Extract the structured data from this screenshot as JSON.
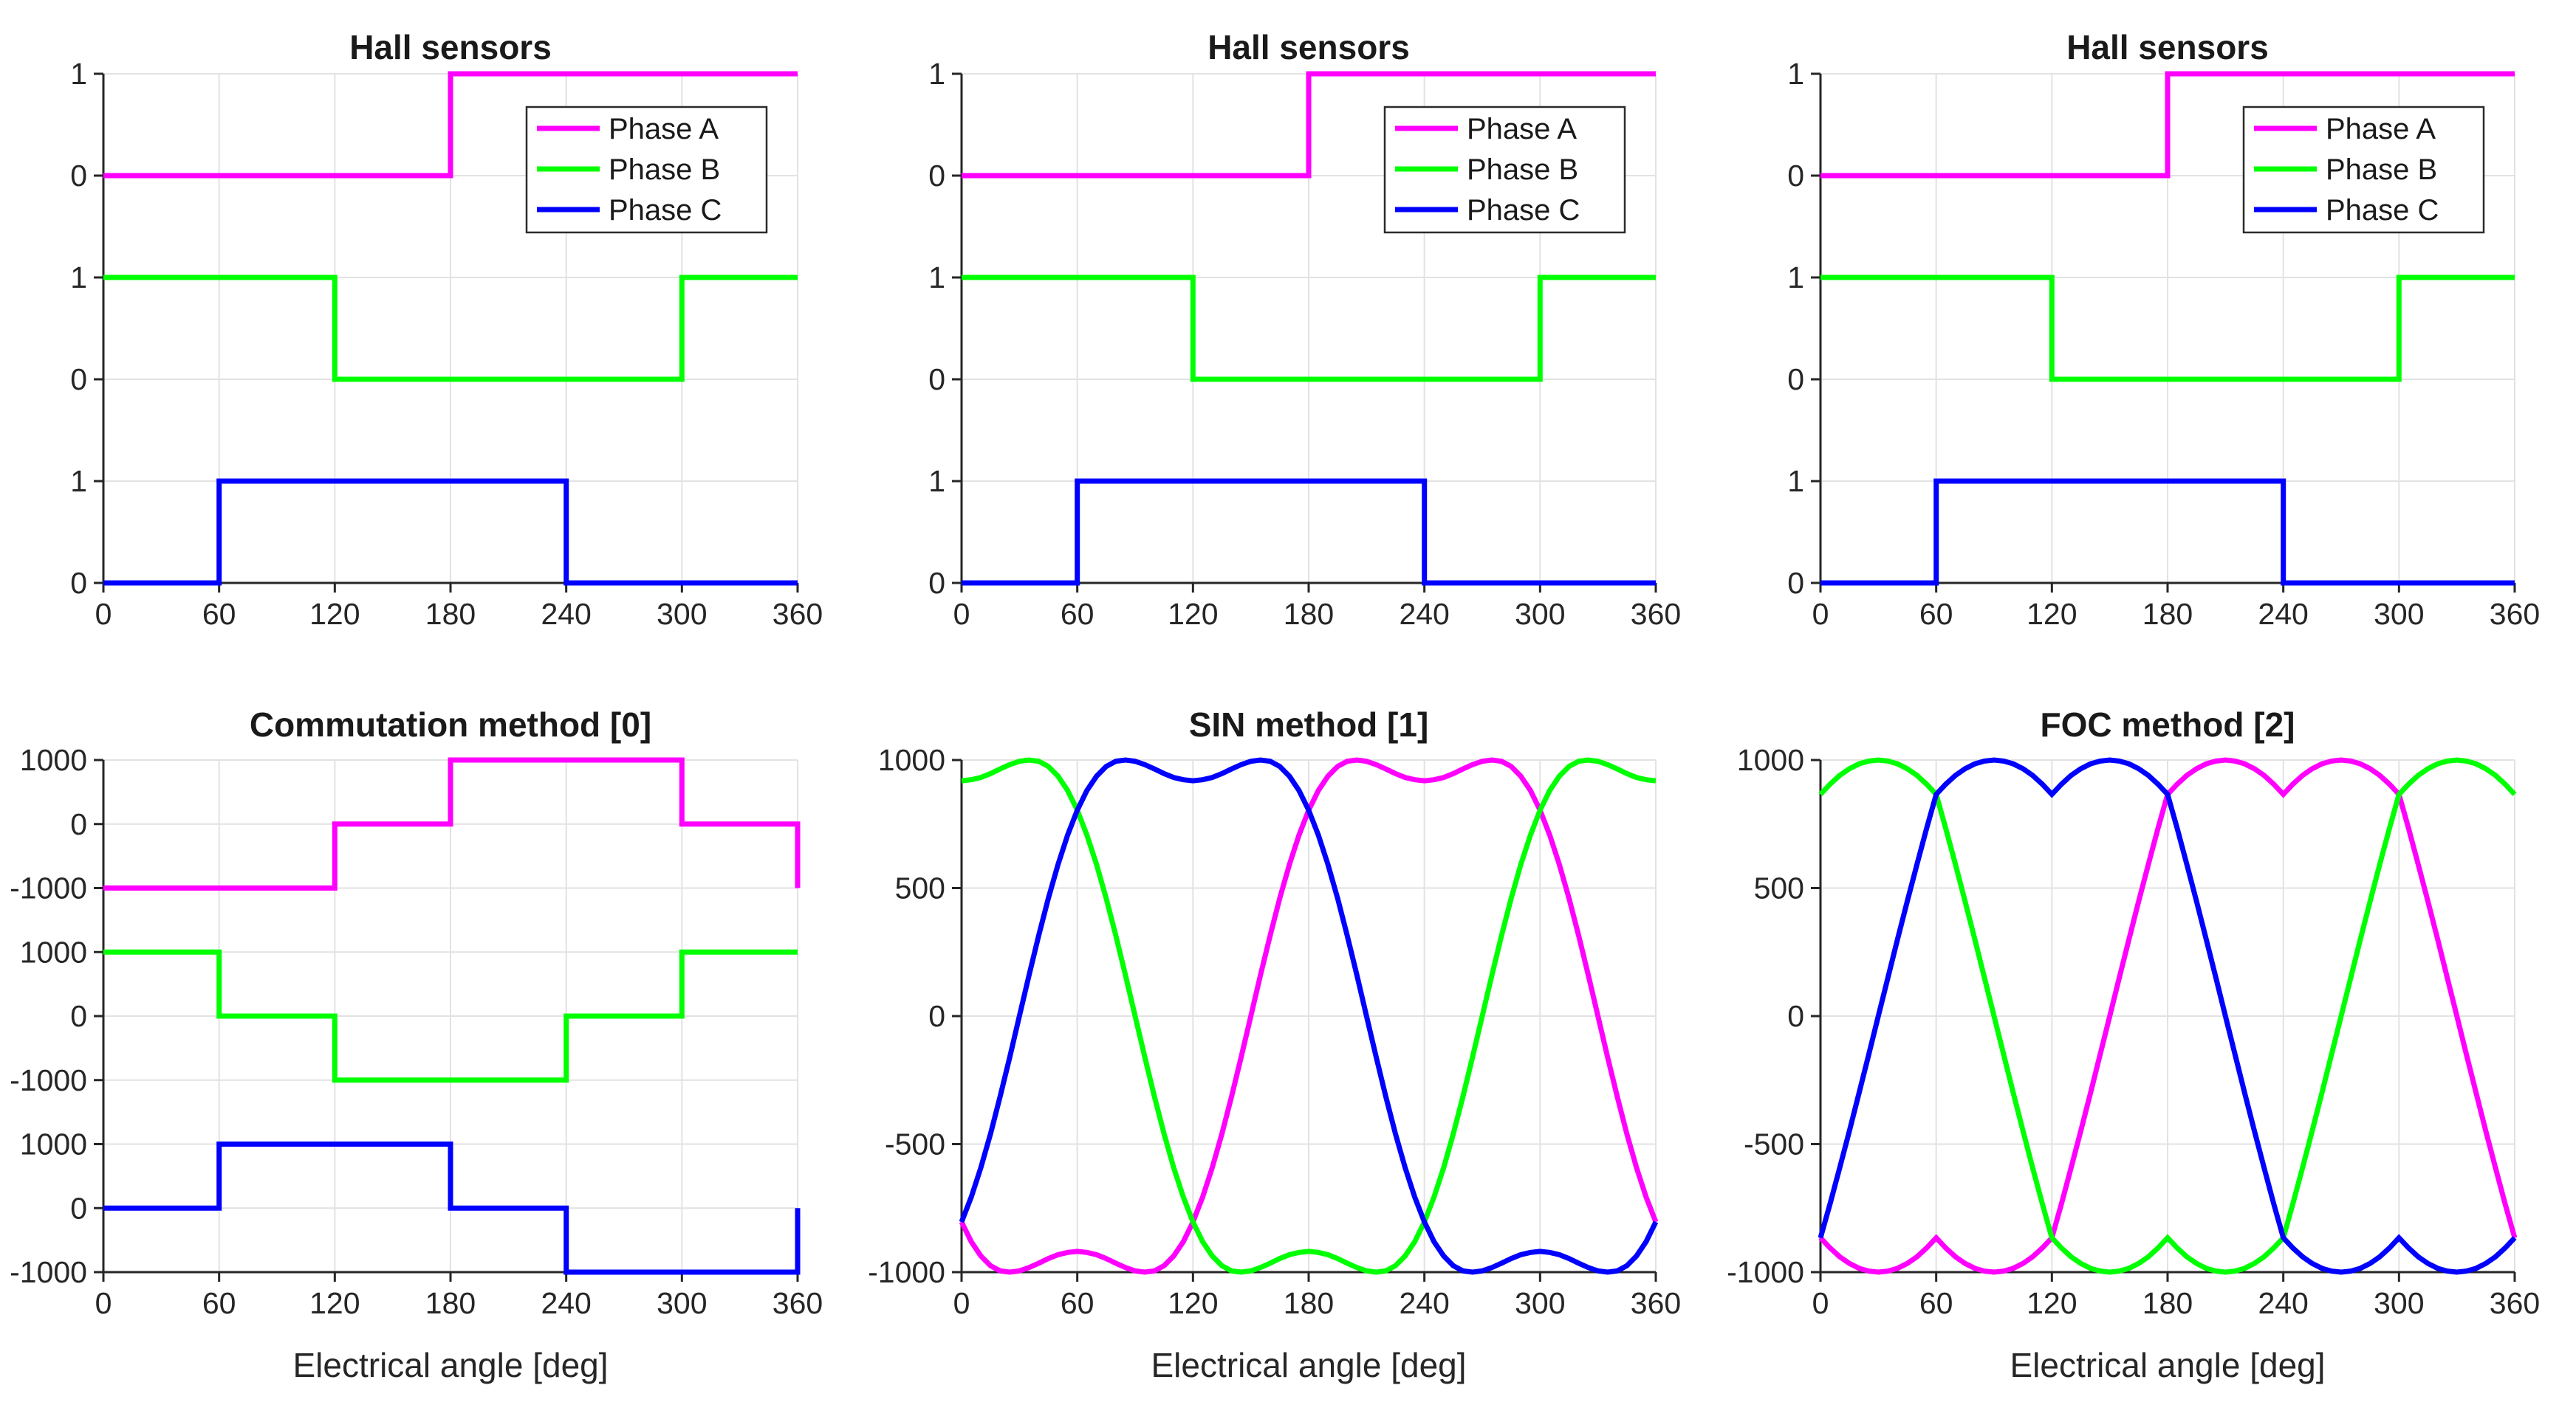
{
  "figure": {
    "background": "#ffffff",
    "axis_color": "#262626",
    "grid_color": "#e2e2e2",
    "text_color": "#262626"
  },
  "phases": {
    "a": {
      "label": "Phase A",
      "color": "#ff00ff"
    },
    "b": {
      "label": "Phase B",
      "color": "#00ff00"
    },
    "c": {
      "label": "Phase C",
      "color": "#0000ff"
    }
  },
  "waveforms": {
    "step_deg": 5,
    "sin_base": [
      0,
      160,
      314,
      460,
      592,
      707,
      804,
      881,
      937,
      975,
      995,
      1000,
      995,
      982,
      965,
      947,
      932,
      923,
      919,
      923,
      932,
      947,
      965,
      982,
      995,
      1000,
      995,
      975,
      937,
      881,
      804,
      707,
      592,
      460,
      314,
      160,
      0,
      -160,
      -314,
      -460,
      -592,
      -707,
      -804,
      -881,
      -937,
      -975,
      -995,
      -1000,
      -995,
      -982,
      -965,
      -947,
      -932,
      -923,
      -919,
      -923,
      -932,
      -947,
      -965,
      -982,
      -995,
      -1000,
      -995,
      -975,
      -937,
      -881,
      -804,
      -707,
      -592,
      -460,
      -314,
      -160,
      0
    ],
    "svpwm_base": [
      0,
      151,
      301,
      448,
      592,
      732,
      866,
      906,
      940,
      966,
      985,
      996,
      1000,
      996,
      985,
      966,
      940,
      906,
      866,
      906,
      940,
      966,
      985,
      996,
      1000,
      996,
      985,
      966,
      940,
      906,
      866,
      732,
      592,
      448,
      301,
      151,
      0,
      -151,
      -301,
      -448,
      -592,
      -732,
      -866,
      -906,
      -940,
      -966,
      -985,
      -996,
      -1000,
      -996,
      -985,
      -966,
      -940,
      -906,
      -866,
      -906,
      -940,
      -966,
      -985,
      -996,
      -1000,
      -996,
      -985,
      -966,
      -940,
      -906,
      -866,
      -732,
      -592,
      -448,
      -301,
      -151,
      0
    ]
  },
  "chart_data": [
    {
      "id": "hall-1",
      "type": "step",
      "title": "Hall sensors",
      "xlim": [
        0,
        360
      ],
      "x_ticks": [
        0,
        60,
        120,
        180,
        240,
        300,
        360
      ],
      "ylim_levels": [
        0,
        5
      ],
      "grid": true,
      "legend": true,
      "legend_position": "upper-right",
      "y_ticks": [
        {
          "label": "1",
          "level": 5
        },
        {
          "label": "0",
          "level": 4
        },
        {
          "label": "1",
          "level": 3
        },
        {
          "label": "0",
          "level": 2
        },
        {
          "label": "1",
          "level": 1
        },
        {
          "label": "0",
          "level": 0
        }
      ],
      "series": [
        {
          "phase": "a",
          "band_offset": 4,
          "value_scale": 1,
          "points": [
            [
              0,
              0
            ],
            [
              180,
              0
            ],
            [
              180,
              1
            ],
            [
              360,
              1
            ]
          ]
        },
        {
          "phase": "b",
          "band_offset": 2,
          "value_scale": 1,
          "points": [
            [
              0,
              1
            ],
            [
              120,
              1
            ],
            [
              120,
              0
            ],
            [
              300,
              0
            ],
            [
              300,
              1
            ],
            [
              360,
              1
            ]
          ]
        },
        {
          "phase": "c",
          "band_offset": 0,
          "value_scale": 1,
          "points": [
            [
              0,
              0
            ],
            [
              60,
              0
            ],
            [
              60,
              1
            ],
            [
              240,
              1
            ],
            [
              240,
              0
            ],
            [
              360,
              0
            ]
          ]
        }
      ]
    },
    {
      "id": "hall-2",
      "type": "step",
      "title": "Hall sensors",
      "xlim": [
        0,
        360
      ],
      "x_ticks": [
        0,
        60,
        120,
        180,
        240,
        300,
        360
      ],
      "ylim_levels": [
        0,
        5
      ],
      "grid": true,
      "legend": true,
      "legend_position": "upper-right",
      "y_ticks": [
        {
          "label": "1",
          "level": 5
        },
        {
          "label": "0",
          "level": 4
        },
        {
          "label": "1",
          "level": 3
        },
        {
          "label": "0",
          "level": 2
        },
        {
          "label": "1",
          "level": 1
        },
        {
          "label": "0",
          "level": 0
        }
      ],
      "series": [
        {
          "phase": "a",
          "band_offset": 4,
          "value_scale": 1,
          "points": [
            [
              0,
              0
            ],
            [
              180,
              0
            ],
            [
              180,
              1
            ],
            [
              360,
              1
            ]
          ]
        },
        {
          "phase": "b",
          "band_offset": 2,
          "value_scale": 1,
          "points": [
            [
              0,
              1
            ],
            [
              120,
              1
            ],
            [
              120,
              0
            ],
            [
              300,
              0
            ],
            [
              300,
              1
            ],
            [
              360,
              1
            ]
          ]
        },
        {
          "phase": "c",
          "band_offset": 0,
          "value_scale": 1,
          "points": [
            [
              0,
              0
            ],
            [
              60,
              0
            ],
            [
              60,
              1
            ],
            [
              240,
              1
            ],
            [
              240,
              0
            ],
            [
              360,
              0
            ]
          ]
        }
      ]
    },
    {
      "id": "hall-3",
      "type": "step",
      "title": "Hall sensors",
      "xlim": [
        0,
        360
      ],
      "x_ticks": [
        0,
        60,
        120,
        180,
        240,
        300,
        360
      ],
      "ylim_levels": [
        0,
        5
      ],
      "grid": true,
      "legend": true,
      "legend_position": "upper-right",
      "y_ticks": [
        {
          "label": "1",
          "level": 5
        },
        {
          "label": "0",
          "level": 4
        },
        {
          "label": "1",
          "level": 3
        },
        {
          "label": "0",
          "level": 2
        },
        {
          "label": "1",
          "level": 1
        },
        {
          "label": "0",
          "level": 0
        }
      ],
      "series": [
        {
          "phase": "a",
          "band_offset": 4,
          "value_scale": 1,
          "points": [
            [
              0,
              0
            ],
            [
              180,
              0
            ],
            [
              180,
              1
            ],
            [
              360,
              1
            ]
          ]
        },
        {
          "phase": "b",
          "band_offset": 2,
          "value_scale": 1,
          "points": [
            [
              0,
              1
            ],
            [
              120,
              1
            ],
            [
              120,
              0
            ],
            [
              300,
              0
            ],
            [
              300,
              1
            ],
            [
              360,
              1
            ]
          ]
        },
        {
          "phase": "c",
          "band_offset": 0,
          "value_scale": 1,
          "points": [
            [
              0,
              0
            ],
            [
              60,
              0
            ],
            [
              60,
              1
            ],
            [
              240,
              1
            ],
            [
              240,
              0
            ],
            [
              360,
              0
            ]
          ]
        }
      ]
    },
    {
      "id": "commutation",
      "type": "step",
      "title": "Commutation method [0]",
      "xlabel": "Electrical angle [deg]",
      "xlim": [
        0,
        360
      ],
      "x_ticks": [
        0,
        60,
        120,
        180,
        240,
        300,
        360
      ],
      "ylim_levels": [
        0,
        8
      ],
      "grid": true,
      "legend": false,
      "y_ticks": [
        {
          "label": "1000",
          "level": 8
        },
        {
          "label": "0",
          "level": 7
        },
        {
          "label": "-1000",
          "level": 6
        },
        {
          "label": "1000",
          "level": 5
        },
        {
          "label": "0",
          "level": 4
        },
        {
          "label": "-1000",
          "level": 3
        },
        {
          "label": "1000",
          "level": 2
        },
        {
          "label": "0",
          "level": 1
        },
        {
          "label": "-1000",
          "level": 0
        }
      ],
      "series": [
        {
          "phase": "a",
          "band_offset": 7,
          "value_scale": 0.001,
          "points": [
            [
              0,
              -1000
            ],
            [
              120,
              -1000
            ],
            [
              120,
              0
            ],
            [
              180,
              0
            ],
            [
              180,
              1000
            ],
            [
              300,
              1000
            ],
            [
              300,
              0
            ],
            [
              360,
              0
            ],
            [
              360,
              -1000
            ]
          ]
        },
        {
          "phase": "b",
          "band_offset": 4,
          "value_scale": 0.001,
          "points": [
            [
              0,
              1000
            ],
            [
              60,
              1000
            ],
            [
              60,
              0
            ],
            [
              120,
              0
            ],
            [
              120,
              -1000
            ],
            [
              240,
              -1000
            ],
            [
              240,
              0
            ],
            [
              300,
              0
            ],
            [
              300,
              1000
            ],
            [
              360,
              1000
            ]
          ]
        },
        {
          "phase": "c",
          "band_offset": 1,
          "value_scale": 0.001,
          "points": [
            [
              0,
              0
            ],
            [
              60,
              0
            ],
            [
              60,
              1000
            ],
            [
              180,
              1000
            ],
            [
              180,
              0
            ],
            [
              240,
              0
            ],
            [
              240,
              -1000
            ],
            [
              360,
              -1000
            ],
            [
              360,
              0
            ]
          ]
        }
      ]
    },
    {
      "id": "sin",
      "type": "wave",
      "title": "SIN method [1]",
      "xlabel": "Electrical angle [deg]",
      "xlim": [
        0,
        360
      ],
      "x_ticks": [
        0,
        60,
        120,
        180,
        240,
        300,
        360
      ],
      "ylim_levels": [
        -1000,
        1000
      ],
      "grid": true,
      "legend": false,
      "y_ticks": [
        {
          "label": "1000",
          "level": 1000
        },
        {
          "label": "500",
          "level": 500
        },
        {
          "label": "0",
          "level": 0
        },
        {
          "label": "-500",
          "level": -500
        },
        {
          "label": "-1000",
          "level": -1000
        }
      ],
      "series": [
        {
          "phase": "a",
          "wave": "sin_base",
          "shift": 42,
          "phase_shift_deg": 210
        },
        {
          "phase": "b",
          "wave": "sin_base",
          "shift": 18,
          "phase_shift_deg": 90
        },
        {
          "phase": "c",
          "wave": "sin_base",
          "shift": 66,
          "phase_shift_deg": 330
        }
      ]
    },
    {
      "id": "foc",
      "type": "wave",
      "title": "FOC method [2]",
      "xlabel": "Electrical angle [deg]",
      "xlim": [
        0,
        360
      ],
      "x_ticks": [
        0,
        60,
        120,
        180,
        240,
        300,
        360
      ],
      "ylim_levels": [
        -1000,
        1000
      ],
      "grid": true,
      "legend": false,
      "y_ticks": [
        {
          "label": "1000",
          "level": 1000
        },
        {
          "label": "500",
          "level": 500
        },
        {
          "label": "0",
          "level": 0
        },
        {
          "label": "-500",
          "level": -500
        },
        {
          "label": "-1000",
          "level": -1000
        }
      ],
      "series": [
        {
          "phase": "a",
          "wave": "svpwm_base",
          "shift": 42,
          "phase_shift_deg": 210
        },
        {
          "phase": "b",
          "wave": "svpwm_base",
          "shift": 18,
          "phase_shift_deg": 90
        },
        {
          "phase": "c",
          "wave": "svpwm_base",
          "shift": 66,
          "phase_shift_deg": 330
        }
      ]
    }
  ]
}
